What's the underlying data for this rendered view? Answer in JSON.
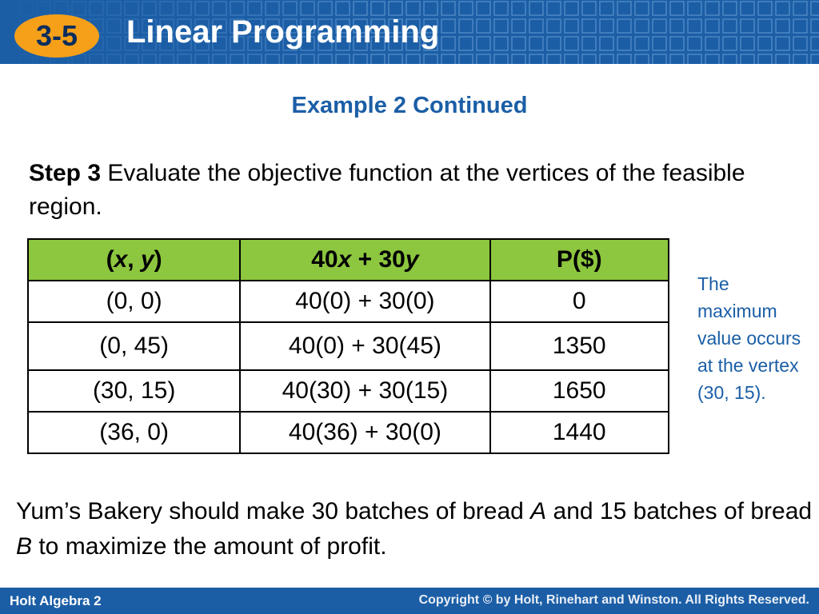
{
  "header": {
    "badge": "3-5",
    "title": "Linear Programming"
  },
  "subtitle": "Example 2 Continued",
  "step": {
    "label": "Step 3",
    "text": " Evaluate the objective function at the vertices of the feasible region."
  },
  "table": {
    "header": [
      [
        "(",
        "x",
        ", ",
        "y",
        ")"
      ],
      [
        "40",
        "x",
        " + 30",
        "y"
      ],
      [
        "P($)"
      ]
    ],
    "rows": [
      [
        "(0, 0)",
        "40(0) + 30(0)",
        "0"
      ],
      [
        "(0, 45)",
        "40(0) + 30(45)",
        "1350"
      ],
      [
        "(30, 15)",
        "40(30) + 30(15)",
        "1650"
      ],
      [
        "(36, 0)",
        "40(36) + 30(0)",
        "1440"
      ]
    ]
  },
  "note": "The maximum value occurs at the vertex (30, 15).",
  "conclusion": [
    "Yum’s Bakery should make 30 batches of bread ",
    "A",
    " and 15 batches of bread ",
    "B",
    " to maximize the amount of profit."
  ],
  "footer": {
    "left": "Holt Algebra 2",
    "right": "Copyright © by Holt, Rinehart and Winston. All Rights Reserved."
  }
}
